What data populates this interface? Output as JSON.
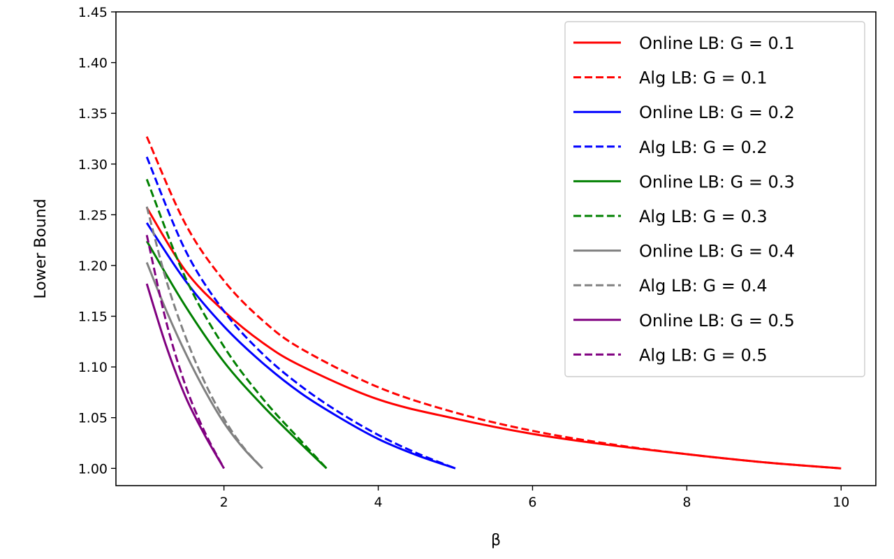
{
  "chart_data": {
    "type": "line",
    "title": "",
    "xlabel": "β",
    "ylabel": "Lower Bound",
    "xlim": [
      0.6,
      10.45
    ],
    "ylim": [
      0.983,
      1.45
    ],
    "xticks": [
      2,
      4,
      6,
      8,
      10
    ],
    "xtick_labels": [
      "2",
      "4",
      "6",
      "8",
      "10"
    ],
    "yticks": [
      1.0,
      1.05,
      1.1,
      1.15,
      1.2,
      1.25,
      1.3,
      1.35,
      1.4,
      1.45
    ],
    "ytick_labels": [
      "1.00",
      "1.05",
      "1.10",
      "1.15",
      "1.20",
      "1.25",
      "1.30",
      "1.35",
      "1.40",
      "1.45"
    ],
    "grid": false,
    "legend_position": "top-right",
    "series": [
      {
        "name": "Online LB: G = 0.1",
        "color": "#ff0000",
        "dash": "solid",
        "x": [
          1,
          1.5,
          2,
          2.5,
          3,
          4,
          5,
          6,
          7,
          8,
          9,
          10
        ],
        "y": [
          1.257,
          1.195,
          1.155,
          1.124,
          1.101,
          1.068,
          1.049,
          1.034,
          1.023,
          1.014,
          1.006,
          1.0
        ]
      },
      {
        "name": "Alg LB: G = 0.1",
        "color": "#ff0000",
        "dash": "dashed",
        "x": [
          1,
          1.5,
          2,
          2.5,
          3,
          4,
          5,
          6,
          7,
          8,
          9,
          10
        ],
        "y": [
          1.327,
          1.241,
          1.185,
          1.146,
          1.118,
          1.08,
          1.055,
          1.037,
          1.024,
          1.014,
          1.006,
          1.0
        ]
      },
      {
        "name": "Online LB: G = 0.2",
        "color": "#0000ff",
        "dash": "solid",
        "x": [
          1,
          1.5,
          2,
          2.5,
          3,
          3.5,
          4,
          4.5,
          5
        ],
        "y": [
          1.242,
          1.185,
          1.14,
          1.104,
          1.074,
          1.05,
          1.029,
          1.013,
          1.0
        ]
      },
      {
        "name": "Alg LB: G = 0.2",
        "color": "#0000ff",
        "dash": "dashed",
        "x": [
          1,
          1.5,
          2,
          2.5,
          3,
          3.5,
          4,
          4.5,
          5
        ],
        "y": [
          1.307,
          1.215,
          1.155,
          1.113,
          1.081,
          1.055,
          1.033,
          1.015,
          1.0
        ]
      },
      {
        "name": "Online LB: G = 0.3",
        "color": "#008000",
        "dash": "solid",
        "x": [
          1,
          1.5,
          2,
          2.5,
          3,
          3.33
        ],
        "y": [
          1.224,
          1.16,
          1.105,
          1.062,
          1.024,
          1.0
        ]
      },
      {
        "name": "Alg LB: G = 0.3",
        "color": "#008000",
        "dash": "dashed",
        "x": [
          1,
          1.5,
          2,
          2.5,
          3,
          3.33
        ],
        "y": [
          1.285,
          1.188,
          1.12,
          1.069,
          1.027,
          1.0
        ]
      },
      {
        "name": "Online LB: G = 0.4",
        "color": "#808080",
        "dash": "solid",
        "x": [
          1,
          1.25,
          1.5,
          1.75,
          2,
          2.25,
          2.5
        ],
        "y": [
          1.203,
          1.156,
          1.114,
          1.077,
          1.045,
          1.02,
          1.0
        ]
      },
      {
        "name": "Alg LB: G = 0.4",
        "color": "#808080",
        "dash": "dashed",
        "x": [
          1,
          1.25,
          1.5,
          1.75,
          2,
          2.25,
          2.5
        ],
        "y": [
          1.258,
          1.186,
          1.13,
          1.085,
          1.049,
          1.021,
          1.0
        ]
      },
      {
        "name": "Online LB: G = 0.5",
        "color": "#800080",
        "dash": "solid",
        "x": [
          1,
          1.25,
          1.5,
          1.75,
          2
        ],
        "y": [
          1.182,
          1.121,
          1.071,
          1.033,
          1.0
        ]
      },
      {
        "name": "Alg LB: G = 0.5",
        "color": "#800080",
        "dash": "dashed",
        "x": [
          1,
          1.25,
          1.5,
          1.75,
          2
        ],
        "y": [
          1.23,
          1.145,
          1.082,
          1.036,
          1.0
        ]
      }
    ]
  }
}
